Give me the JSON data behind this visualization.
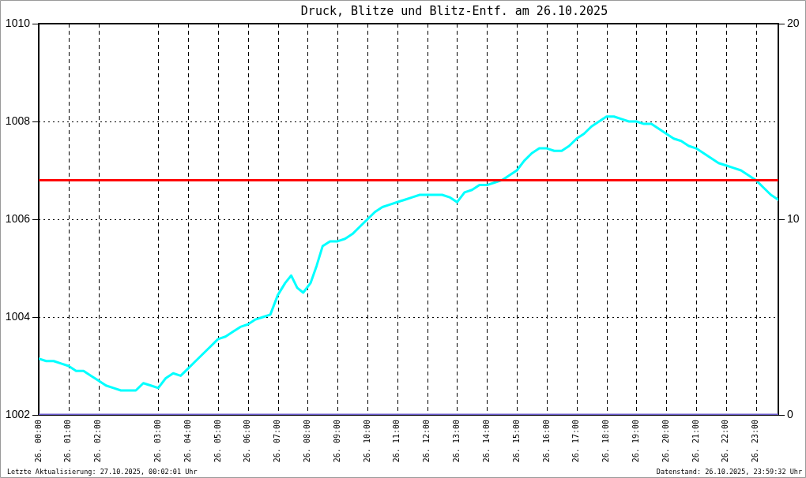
{
  "chart_data": {
    "type": "line",
    "title": "Druck, Blitze und Blitz-Entf. am 26.10.2025",
    "x": [
      "2025-10-25T22:00",
      "2025-10-25T22:15",
      "2025-10-25T22:30",
      "2025-10-25T22:45",
      "2025-10-25T23:00",
      "2025-10-25T23:15",
      "2025-10-25T23:30",
      "2025-10-25T23:45",
      "2025-10-26T00:00",
      "2025-10-26T00:15",
      "2025-10-26T00:30",
      "2025-10-26T00:45",
      "2025-10-26T01:00",
      "2025-10-26T01:15",
      "2025-10-26T01:30",
      "2025-10-26T01:45",
      "2025-10-26T02:00",
      "2025-10-26T02:15",
      "2025-10-26T02:30",
      "2025-10-26T02:45",
      "2025-10-26T03:00",
      "2025-10-26T03:15",
      "2025-10-26T03:30",
      "2025-10-26T03:45",
      "2025-10-26T04:00",
      "2025-10-26T04:15",
      "2025-10-26T04:30",
      "2025-10-26T04:45",
      "2025-10-26T05:00",
      "2025-10-26T05:15",
      "2025-10-26T05:30",
      "2025-10-26T05:45",
      "2025-10-26T06:00",
      "2025-10-26T06:15",
      "2025-10-26T06:27",
      "2025-10-26T06:39",
      "2025-10-26T06:51",
      "2025-10-26T07:06",
      "2025-10-26T07:18",
      "2025-10-26T07:30",
      "2025-10-26T07:45",
      "2025-10-26T08:00",
      "2025-10-26T08:15",
      "2025-10-26T08:30",
      "2025-10-26T08:45",
      "2025-10-26T09:00",
      "2025-10-26T09:15",
      "2025-10-26T09:30",
      "2025-10-26T09:45",
      "2025-10-26T10:00",
      "2025-10-26T10:15",
      "2025-10-26T10:30",
      "2025-10-26T10:45",
      "2025-10-26T11:00",
      "2025-10-26T11:15",
      "2025-10-26T11:30",
      "2025-10-26T11:45",
      "2025-10-26T12:00",
      "2025-10-26T12:15",
      "2025-10-26T12:30",
      "2025-10-26T12:45",
      "2025-10-26T13:00",
      "2025-10-26T13:15",
      "2025-10-26T13:30",
      "2025-10-26T13:45",
      "2025-10-26T14:00",
      "2025-10-26T14:15",
      "2025-10-26T14:30",
      "2025-10-26T14:45",
      "2025-10-26T15:00",
      "2025-10-26T15:15",
      "2025-10-26T15:30",
      "2025-10-26T15:45",
      "2025-10-26T16:00",
      "2025-10-26T16:15",
      "2025-10-26T16:30",
      "2025-10-26T16:45",
      "2025-10-26T17:00",
      "2025-10-26T17:15",
      "2025-10-26T17:30",
      "2025-10-26T17:45",
      "2025-10-26T18:00",
      "2025-10-26T18:15",
      "2025-10-26T18:30",
      "2025-10-26T18:45",
      "2025-10-26T19:00",
      "2025-10-26T19:15",
      "2025-10-26T19:30",
      "2025-10-26T19:45",
      "2025-10-26T20:00",
      "2025-10-26T20:15",
      "2025-10-26T20:30",
      "2025-10-26T20:45",
      "2025-10-26T21:00",
      "2025-10-26T21:15",
      "2025-10-26T21:30",
      "2025-10-26T21:45",
      "2025-10-26T22:00",
      "2025-10-26T22:15",
      "2025-10-26T22:30",
      "2025-10-26T22:45"
    ],
    "xlim": [
      "2025-10-25T22:00",
      "2025-10-26T22:45"
    ],
    "xticks": [
      {
        "value": "2025-10-25T22:00",
        "label": "26. 00:00"
      },
      {
        "value": "2025-10-25T23:00",
        "label": "26. 01:00"
      },
      {
        "value": "2025-10-26T00:00",
        "label": "26. 02:00"
      },
      {
        "value": "2025-10-26T02:00",
        "label": "26. 03:00"
      },
      {
        "value": "2025-10-26T03:00",
        "label": "26. 04:00"
      },
      {
        "value": "2025-10-26T04:00",
        "label": "26. 05:00"
      },
      {
        "value": "2025-10-26T05:00",
        "label": "26. 06:00"
      },
      {
        "value": "2025-10-26T06:00",
        "label": "26. 07:00"
      },
      {
        "value": "2025-10-26T07:00",
        "label": "26. 08:00"
      },
      {
        "value": "2025-10-26T08:00",
        "label": "26. 09:00"
      },
      {
        "value": "2025-10-26T09:00",
        "label": "26. 10:00"
      },
      {
        "value": "2025-10-26T10:00",
        "label": "26. 11:00"
      },
      {
        "value": "2025-10-26T11:00",
        "label": "26. 12:00"
      },
      {
        "value": "2025-10-26T12:00",
        "label": "26. 13:00"
      },
      {
        "value": "2025-10-26T13:00",
        "label": "26. 14:00"
      },
      {
        "value": "2025-10-26T14:00",
        "label": "26. 15:00"
      },
      {
        "value": "2025-10-26T15:00",
        "label": "26. 16:00"
      },
      {
        "value": "2025-10-26T16:00",
        "label": "26. 17:00"
      },
      {
        "value": "2025-10-26T17:00",
        "label": "26. 18:00"
      },
      {
        "value": "2025-10-26T18:00",
        "label": "26. 19:00"
      },
      {
        "value": "2025-10-26T19:00",
        "label": "26. 20:00"
      },
      {
        "value": "2025-10-26T20:00",
        "label": "26. 21:00"
      },
      {
        "value": "2025-10-26T21:00",
        "label": "26. 22:00"
      },
      {
        "value": "2025-10-26T22:00",
        "label": "26. 23:00"
      }
    ],
    "ylim": [
      1002,
      1010
    ],
    "yticks": [
      1002,
      1004,
      1006,
      1008,
      1010
    ],
    "y2lim": [
      0,
      20
    ],
    "y2ticks": [
      0,
      10,
      20
    ],
    "grid": true,
    "series": [
      {
        "color": "#00ffff",
        "values": [
          1003.15,
          1003.1,
          1003.1,
          1003.05,
          1003.0,
          1002.9,
          1002.9,
          1002.8,
          1002.7,
          1002.6,
          1002.55,
          1002.5,
          1002.5,
          1002.5,
          1002.65,
          1002.6,
          1002.55,
          1002.75,
          1002.85,
          1002.8,
          1002.95,
          1003.1,
          1003.25,
          1003.4,
          1003.55,
          1003.6,
          1003.7,
          1003.8,
          1003.85,
          1003.95,
          1004.0,
          1004.05,
          1004.45,
          1004.7,
          1004.85,
          1004.6,
          1004.5,
          1004.7,
          1005.05,
          1005.45,
          1005.55,
          1005.55,
          1005.6,
          1005.7,
          1005.85,
          1006.0,
          1006.15,
          1006.25,
          1006.3,
          1006.35,
          1006.4,
          1006.45,
          1006.5,
          1006.5,
          1006.5,
          1006.5,
          1006.45,
          1006.35,
          1006.55,
          1006.6,
          1006.7,
          1006.7,
          1006.75,
          1006.8,
          1006.9,
          1007.0,
          1007.2,
          1007.35,
          1007.45,
          1007.45,
          1007.4,
          1007.4,
          1007.5,
          1007.65,
          1007.75,
          1007.9,
          1008.0,
          1008.1,
          1008.1,
          1008.05,
          1008.0,
          1008.0,
          1007.95,
          1007.95,
          1007.85,
          1007.75,
          1007.65,
          1007.6,
          1007.5,
          1007.45,
          1007.35,
          1007.25,
          1007.15,
          1007.1,
          1007.05,
          1007.0,
          1006.9,
          1006.8,
          1006.65,
          1006.5,
          1006.4
        ]
      },
      {
        "color": "#6a5acd",
        "axis": "y2",
        "values": [
          0,
          0,
          0,
          0,
          0,
          0,
          0,
          0,
          0,
          0,
          0,
          0,
          0,
          0,
          0,
          0,
          0,
          0,
          0,
          0,
          0,
          0,
          0,
          0,
          0,
          0,
          0,
          0,
          0,
          0,
          0,
          0,
          0,
          0,
          0,
          0,
          0,
          0,
          0,
          0,
          0,
          0,
          0,
          0,
          0,
          0,
          0,
          0,
          0,
          0,
          0,
          0,
          0,
          0,
          0,
          0,
          0,
          0,
          0,
          0,
          0,
          0,
          0,
          0,
          0,
          0,
          0,
          0,
          0,
          0,
          0,
          0,
          0,
          0,
          0,
          0,
          0,
          0,
          0,
          0,
          0,
          0,
          0,
          0,
          0,
          0,
          0,
          0,
          0,
          0,
          0,
          0,
          0,
          0,
          0,
          0,
          0,
          0,
          0,
          0,
          0
        ]
      },
      {
        "color": "#ff0000",
        "axis": "y2",
        "values": [
          12,
          12,
          12,
          12,
          12,
          12,
          12,
          12,
          12,
          12,
          12,
          12,
          12,
          12,
          12,
          12,
          12,
          12,
          12,
          12,
          12,
          12,
          12,
          12,
          12,
          12,
          12,
          12,
          12,
          12,
          12,
          12,
          12,
          12,
          12,
          12,
          12,
          12,
          12,
          12,
          12,
          12,
          12,
          12,
          12,
          12,
          12,
          12,
          12,
          12,
          12,
          12,
          12,
          12,
          12,
          12,
          12,
          12,
          12,
          12,
          12,
          12,
          12,
          12,
          12,
          12,
          12,
          12,
          12,
          12,
          12,
          12,
          12,
          12,
          12,
          12,
          12,
          12,
          12,
          12,
          12,
          12,
          12,
          12,
          12,
          12,
          12,
          12,
          12,
          12,
          12,
          12,
          12,
          12,
          12,
          12,
          12,
          12,
          12,
          12,
          12
        ]
      }
    ],
    "annotations": [
      "Letzte Aktualisierung: 27.10.2025, 00:02:01 Uhr",
      "Datenstand: 26.10.2025, 23:59:32 Uhr"
    ]
  }
}
